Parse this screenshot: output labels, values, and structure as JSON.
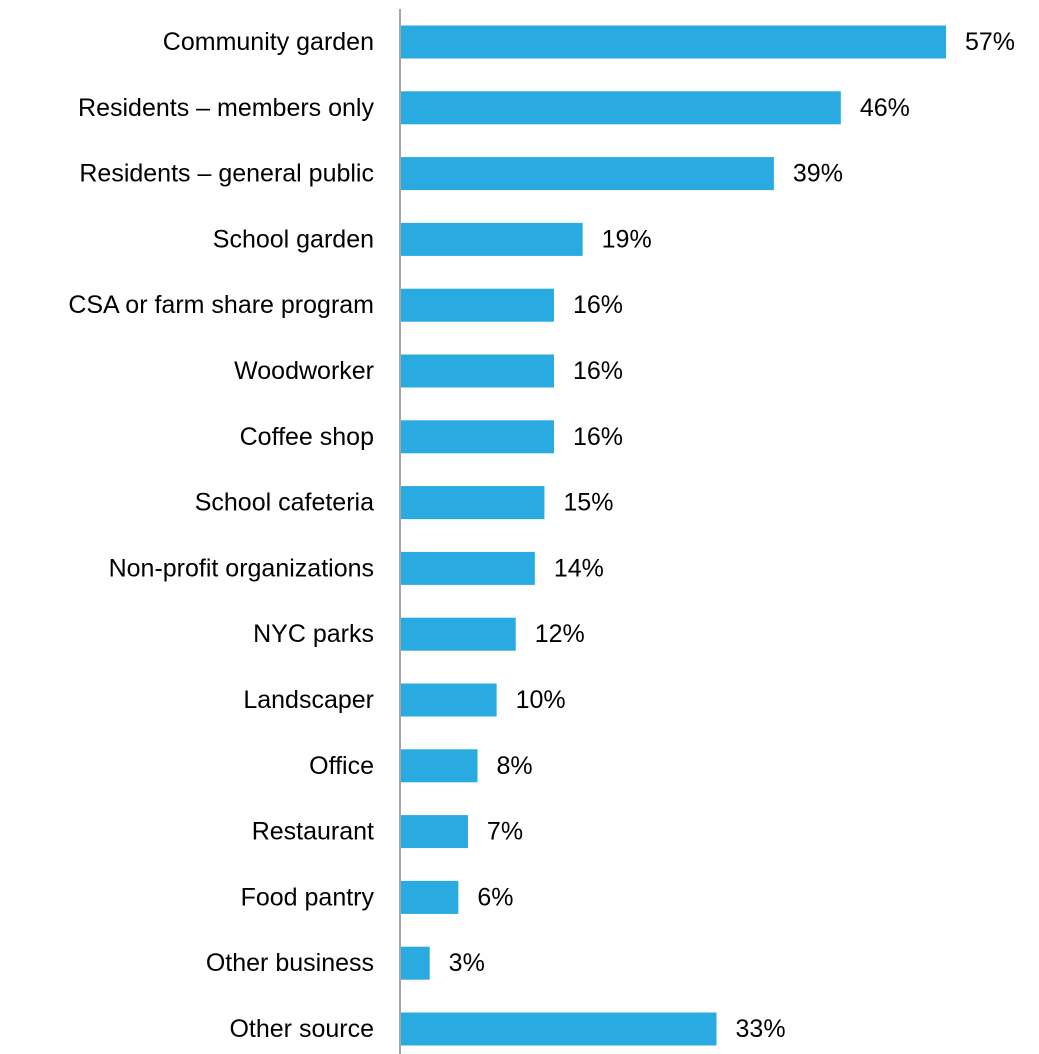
{
  "chart_data": {
    "type": "bar",
    "orientation": "horizontal",
    "categories": [
      "Community garden",
      "Residents – members only",
      "Residents – general public",
      "School garden",
      "CSA or farm share program",
      "Woodworker",
      "Coffee shop",
      "School cafeteria",
      "Non-profit organizations",
      "NYC parks",
      "Landscaper",
      "Office",
      "Restaurant",
      "Food pantry",
      "Other business",
      "Other source"
    ],
    "values": [
      57,
      46,
      39,
      19,
      16,
      16,
      16,
      15,
      14,
      12,
      10,
      8,
      7,
      6,
      3,
      33
    ],
    "value_labels": [
      "57%",
      "46%",
      "39%",
      "19%",
      "16%",
      "16%",
      "16%",
      "15%",
      "14%",
      "12%",
      "10%",
      "8%",
      "7%",
      "6%",
      "3%",
      "33%"
    ],
    "xlim": [
      0,
      57
    ],
    "grid": false,
    "bar_color": "#29ABE2",
    "axis_color": "#A6A6A6"
  }
}
